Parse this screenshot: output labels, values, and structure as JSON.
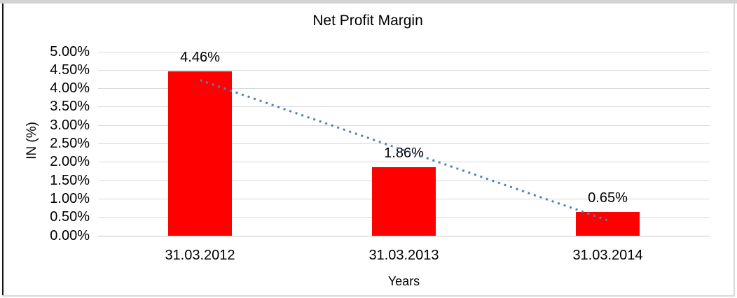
{
  "page": {
    "frame": {
      "top_strip_color": "#d2d2d2",
      "left_border_color": "#111111",
      "right_border_color": "#d9d9d9",
      "bottom_border_color": "#d9d9d9"
    },
    "background_color": "#ffffff"
  },
  "chart_data": {
    "type": "bar",
    "title": "Net Profit Margin",
    "xlabel": "Years",
    "ylabel": "IN (%)",
    "categories": [
      "31.03.2012",
      "31.03.2013",
      "31.03.2014"
    ],
    "values": [
      4.46,
      1.86,
      0.65
    ],
    "data_labels": [
      "4.46%",
      "1.86%",
      "0.65%"
    ],
    "ylim": [
      0,
      5
    ],
    "ytick_step": 0.5,
    "ytick_labels": [
      "0.00%",
      "0.50%",
      "1.00%",
      "1.50%",
      "2.00%",
      "2.50%",
      "3.00%",
      "3.50%",
      "4.00%",
      "4.50%",
      "5.00%"
    ],
    "grid": true,
    "legend": "none",
    "bar_color": "#ff0000",
    "gridline_color": "#d9d9d9",
    "baseline_color": "#c6c6c6",
    "text_color": "#000000",
    "trendline": {
      "style": "dotted",
      "color": "#4f81bd",
      "start_value": 4.23,
      "end_value": 0.42
    }
  }
}
